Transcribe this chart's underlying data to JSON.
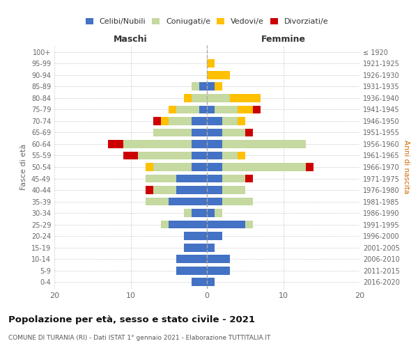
{
  "age_groups": [
    "100+",
    "95-99",
    "90-94",
    "85-89",
    "80-84",
    "75-79",
    "70-74",
    "65-69",
    "60-64",
    "55-59",
    "50-54",
    "45-49",
    "40-44",
    "35-39",
    "30-34",
    "25-29",
    "20-24",
    "15-19",
    "10-14",
    "5-9",
    "0-4"
  ],
  "birth_years": [
    "≤ 1920",
    "1921-1925",
    "1926-1930",
    "1931-1935",
    "1936-1940",
    "1941-1945",
    "1946-1950",
    "1951-1955",
    "1956-1960",
    "1961-1965",
    "1966-1970",
    "1971-1975",
    "1976-1980",
    "1981-1985",
    "1986-1990",
    "1991-1995",
    "1996-2000",
    "2001-2005",
    "2006-2010",
    "2011-2015",
    "2016-2020"
  ],
  "maschi": {
    "celibe": [
      0,
      0,
      0,
      1,
      0,
      1,
      2,
      2,
      2,
      2,
      2,
      4,
      4,
      5,
      2,
      5,
      3,
      3,
      4,
      4,
      2
    ],
    "coniugato": [
      0,
      0,
      0,
      1,
      2,
      3,
      3,
      5,
      9,
      7,
      5,
      4,
      3,
      3,
      1,
      1,
      0,
      0,
      0,
      0,
      0
    ],
    "vedovo": [
      0,
      0,
      0,
      0,
      1,
      1,
      1,
      0,
      0,
      0,
      1,
      0,
      0,
      0,
      0,
      0,
      0,
      0,
      0,
      0,
      0
    ],
    "divorziato": [
      0,
      0,
      0,
      0,
      0,
      0,
      1,
      0,
      2,
      2,
      0,
      0,
      1,
      0,
      0,
      0,
      0,
      0,
      0,
      0,
      0
    ]
  },
  "femmine": {
    "nubile": [
      0,
      0,
      0,
      1,
      0,
      1,
      2,
      2,
      2,
      2,
      2,
      2,
      2,
      2,
      1,
      5,
      2,
      1,
      3,
      3,
      1
    ],
    "coniugata": [
      0,
      0,
      0,
      0,
      3,
      3,
      2,
      3,
      11,
      2,
      11,
      3,
      3,
      4,
      1,
      1,
      0,
      0,
      0,
      0,
      0
    ],
    "vedova": [
      0,
      1,
      3,
      1,
      4,
      2,
      1,
      0,
      0,
      1,
      0,
      0,
      0,
      0,
      0,
      0,
      0,
      0,
      0,
      0,
      0
    ],
    "divorziata": [
      0,
      0,
      0,
      0,
      0,
      1,
      0,
      1,
      0,
      0,
      1,
      1,
      0,
      0,
      0,
      0,
      0,
      0,
      0,
      0,
      0
    ]
  },
  "colors": {
    "celibe": "#4472C4",
    "coniugato": "#C5D9A0",
    "vedovo": "#FFC000",
    "divorziato": "#CC0000"
  },
  "xlim": 20,
  "title": "Popolazione per età, sesso e stato civile - 2021",
  "subtitle": "COMUNE DI TURANIA (RI) - Dati ISTAT 1° gennaio 2021 - Elaborazione TUTTITALIA.IT",
  "ylabel_left": "Fasce di età",
  "ylabel_right": "Anni di nascita",
  "xlabel_maschi": "Maschi",
  "xlabel_femmine": "Femmine"
}
